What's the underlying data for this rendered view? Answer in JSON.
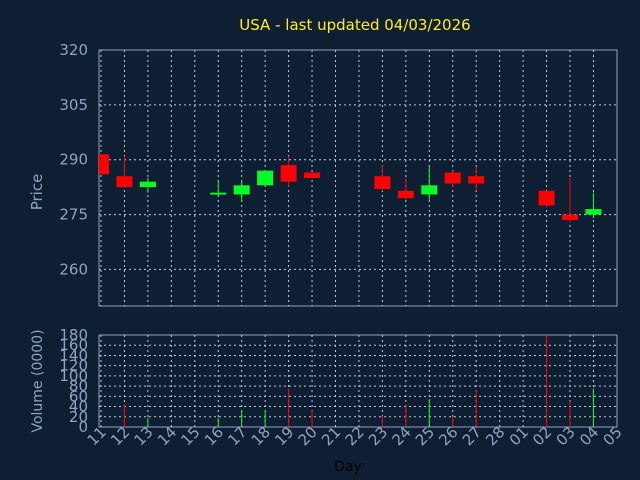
{
  "chart_data": {
    "type": "candlestick",
    "title": "USA - last updated 04/03/2026",
    "xlabel": "Day",
    "price_panel": {
      "ylabel": "Price",
      "ylim": [
        250,
        320
      ],
      "yticks": [
        260,
        275,
        290,
        305,
        320
      ]
    },
    "volume_panel": {
      "ylabel": "Volume (0000)",
      "ylim": [
        0,
        180
      ],
      "yticks": [
        0,
        20,
        40,
        60,
        80,
        100,
        120,
        140,
        160,
        180
      ]
    },
    "x_ticks": [
      "11",
      "12",
      "13",
      "14",
      "15",
      "16",
      "17",
      "18",
      "19",
      "20",
      "21",
      "22",
      "23",
      "24",
      "25",
      "26",
      "27",
      "28",
      "01",
      "02",
      "03",
      "04",
      "05"
    ],
    "candles": [
      {
        "day": "11",
        "open": 291.5,
        "high": 291.5,
        "close": 286.0,
        "low": 286.0,
        "volume": 0
      },
      {
        "day": "12",
        "open": 285.5,
        "high": 291.0,
        "close": 282.5,
        "low": 282.5,
        "volume": 45
      },
      {
        "day": "13",
        "open": 282.5,
        "high": 285.0,
        "close": 284.0,
        "low": 281.0,
        "volume": 18
      },
      {
        "day": "16",
        "open": 280.5,
        "high": 284.0,
        "close": 281.0,
        "low": 280.0,
        "volume": 18
      },
      {
        "day": "17",
        "open": 280.5,
        "high": 284.0,
        "close": 283.0,
        "low": 278.5,
        "volume": 32
      },
      {
        "day": "18",
        "open": 283.0,
        "high": 287.0,
        "close": 287.0,
        "low": 283.0,
        "volume": 32
      },
      {
        "day": "19",
        "open": 288.5,
        "high": 291.0,
        "close": 284.0,
        "low": 282.5,
        "volume": 75
      },
      {
        "day": "20",
        "open": 286.5,
        "high": 286.5,
        "close": 285.0,
        "low": 285.0,
        "volume": 32
      },
      {
        "day": "23",
        "open": 285.5,
        "high": 288.5,
        "close": 282.0,
        "low": 281.5,
        "volume": 22
      },
      {
        "day": "24",
        "open": 281.5,
        "high": 285.0,
        "close": 279.5,
        "low": 279.0,
        "volume": 42
      },
      {
        "day": "25",
        "open": 280.5,
        "high": 288.0,
        "close": 283.0,
        "low": 279.0,
        "volume": 55
      },
      {
        "day": "26",
        "open": 286.5,
        "high": 287.0,
        "close": 283.5,
        "low": 282.5,
        "volume": 20
      },
      {
        "day": "27",
        "open": 285.5,
        "high": 288.0,
        "close": 283.5,
        "low": 281.5,
        "volume": 72
      },
      {
        "day": "02",
        "open": 281.5,
        "high": 281.5,
        "close": 277.5,
        "low": 277.0,
        "volume": 180
      },
      {
        "day": "03",
        "open": 275.0,
        "high": 285.0,
        "close": 273.5,
        "low": 273.0,
        "volume": 50
      },
      {
        "day": "04",
        "open": 275.0,
        "high": 281.0,
        "close": 276.5,
        "low": 274.0,
        "volume": 75
      }
    ],
    "colors": {
      "background": "#0f1f33",
      "plot_background": "#0f1f33",
      "up": "#00ff22",
      "down": "#ff0000",
      "grid": "#c0c8d4",
      "frame": "#8ea3bf",
      "title": "#ffee22",
      "text": "#8ea3bf",
      "xlabel": "#000000"
    },
    "grid": true
  }
}
